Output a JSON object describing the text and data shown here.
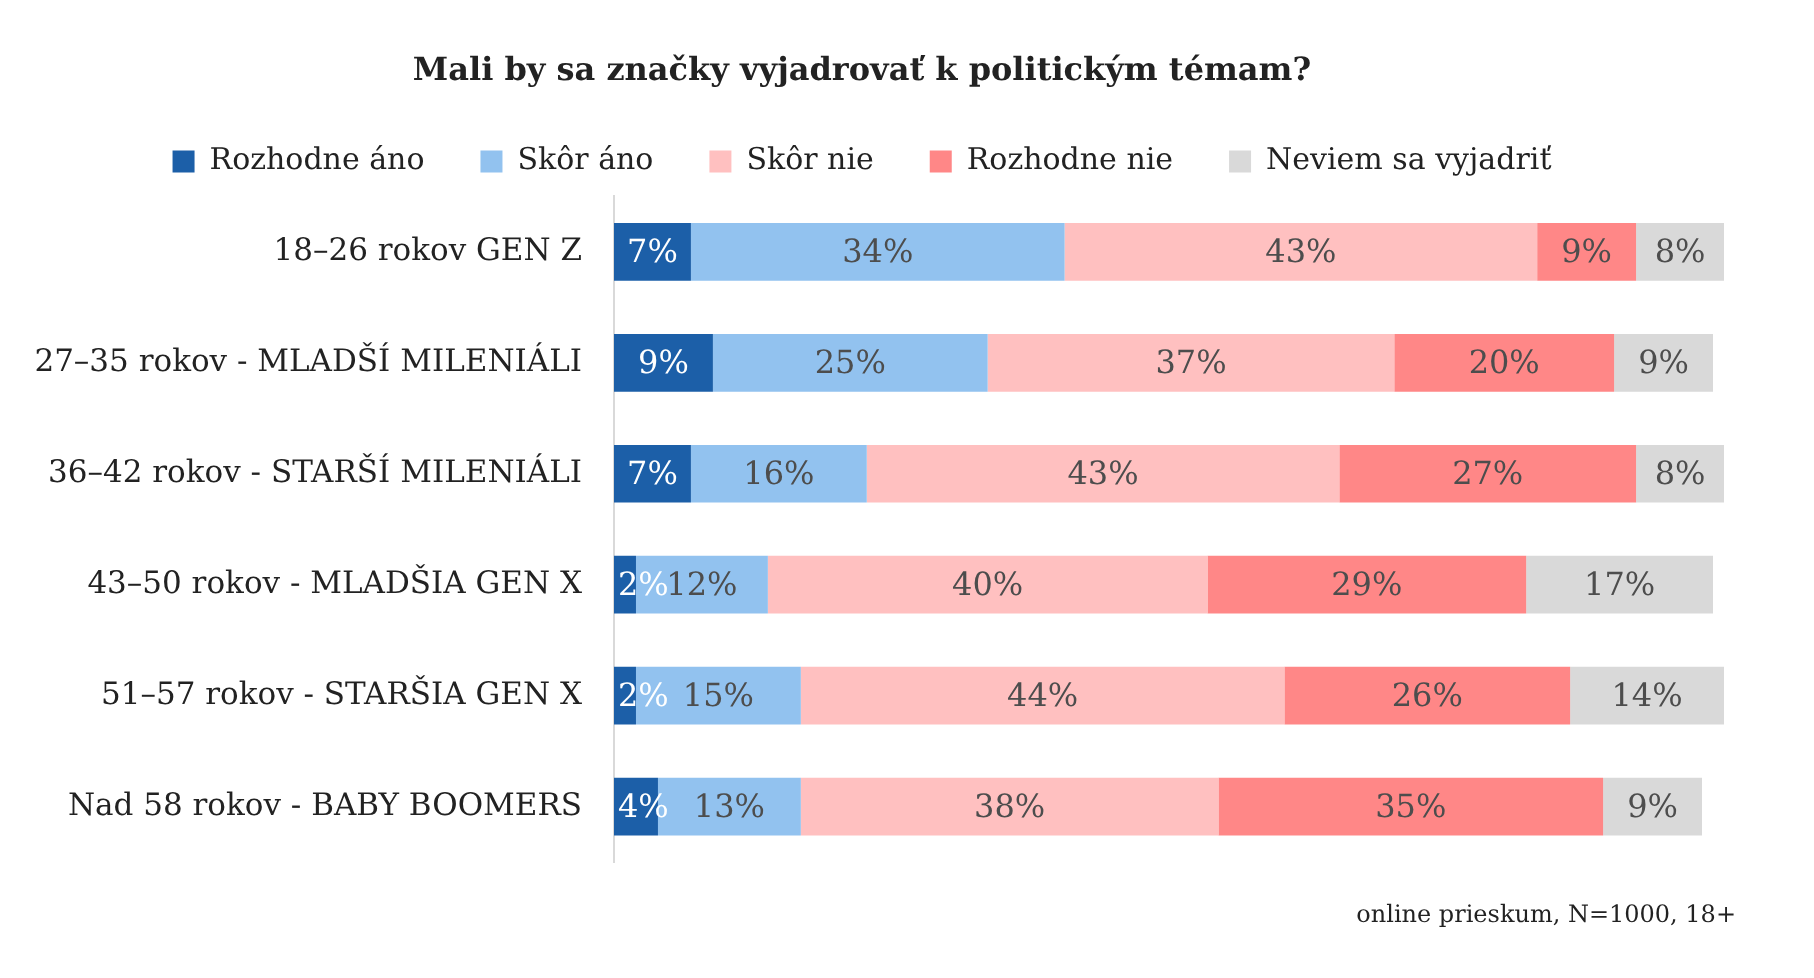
{
  "chart_data": {
    "type": "bar",
    "orientation": "horizontal",
    "stacked": true,
    "title": "Mali by sa značky vyjadrovať k politickým témam?",
    "categories": [
      "18–26 rokov GEN Z",
      "27–35 rokov - MLADŠÍ MILENIÁLI",
      "36–42 rokov - STARŠÍ MILENIÁLI",
      "43–50 rokov - MLADŠIA GEN X",
      "51–57 rokov - STARŠIA GEN X",
      "Nad 58 rokov - BABY BOOMERS"
    ],
    "series": [
      {
        "name": "Rozhodne áno",
        "color": "#1c5fa8",
        "values": [
          7,
          9,
          7,
          2,
          2,
          4
        ],
        "value_labels": [
          "7%",
          "9%",
          "7%",
          "2%",
          "2%",
          "4%"
        ]
      },
      {
        "name": "Skôr áno",
        "color": "#92c2ef",
        "values": [
          34,
          25,
          16,
          12,
          15,
          13
        ],
        "value_labels": [
          "34%",
          "25%",
          "16%",
          "12%",
          "15%",
          "13%"
        ]
      },
      {
        "name": "Skôr nie",
        "color": "#ffc0c0",
        "values": [
          43,
          37,
          43,
          40,
          44,
          38
        ],
        "value_labels": [
          "43%",
          "37%",
          "43%",
          "40%",
          "44%",
          "38%"
        ]
      },
      {
        "name": "Rozhodne nie",
        "color": "#ff8787",
        "values": [
          9,
          20,
          27,
          29,
          26,
          35
        ],
        "value_labels": [
          "9%",
          "20%",
          "27%",
          "29%",
          "26%",
          "35%"
        ]
      },
      {
        "name": "Neviem sa vyjadriť",
        "color": "#d9d9d9",
        "values": [
          8,
          9,
          8,
          17,
          14,
          9
        ],
        "value_labels": [
          "8%",
          "9%",
          "8%",
          "17%",
          "14%",
          "9%"
        ]
      }
    ],
    "xlim": [
      0,
      101
    ],
    "tick_labels": "y",
    "legend": "top",
    "annotations": [
      "online prieskum, N=1000, 18+"
    ]
  }
}
